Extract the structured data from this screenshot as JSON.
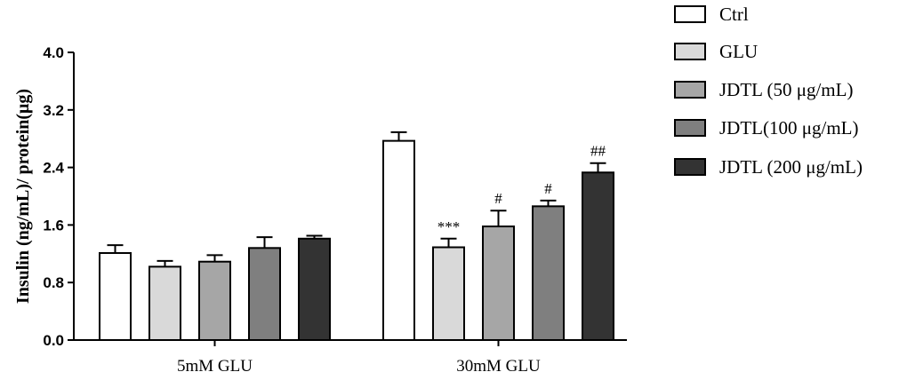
{
  "chart_data": {
    "type": "bar",
    "title": "",
    "xlabel": "",
    "ylabel": "Insulin (ng/mL)/ protein(μg)",
    "ylim": [
      0,
      4.0
    ],
    "yticks": [
      "0.0",
      "0.8",
      "1.6",
      "2.4",
      "3.2",
      "4.0"
    ],
    "categories": [
      "5mM GLU",
      "30mM GLU"
    ],
    "series": [
      {
        "name": "Ctrl",
        "color": "#ffffff",
        "values": [
          1.21,
          2.77
        ],
        "errors": [
          0.11,
          0.12
        ],
        "annotations": [
          "",
          ""
        ]
      },
      {
        "name": "GLU",
        "color": "#d9d9d9",
        "values": [
          1.02,
          1.29
        ],
        "errors": [
          0.08,
          0.12
        ],
        "annotations": [
          "",
          "***"
        ]
      },
      {
        "name": "JDTL (50  μg/mL)",
        "color": "#a6a6a6",
        "values": [
          1.09,
          1.58
        ],
        "errors": [
          0.09,
          0.22
        ],
        "annotations": [
          "",
          "#"
        ]
      },
      {
        "name": "JDTL(100 μg/mL)",
        "color": "#7f7f7f",
        "values": [
          1.28,
          1.86
        ],
        "errors": [
          0.15,
          0.08
        ],
        "annotations": [
          "",
          "#"
        ]
      },
      {
        "name": "JDTL (200 μg/mL)",
        "color": "#333333",
        "values": [
          1.41,
          2.33
        ],
        "errors": [
          0.04,
          0.13
        ],
        "annotations": [
          "",
          "##"
        ]
      }
    ],
    "grid": false,
    "legend_position": "right"
  }
}
